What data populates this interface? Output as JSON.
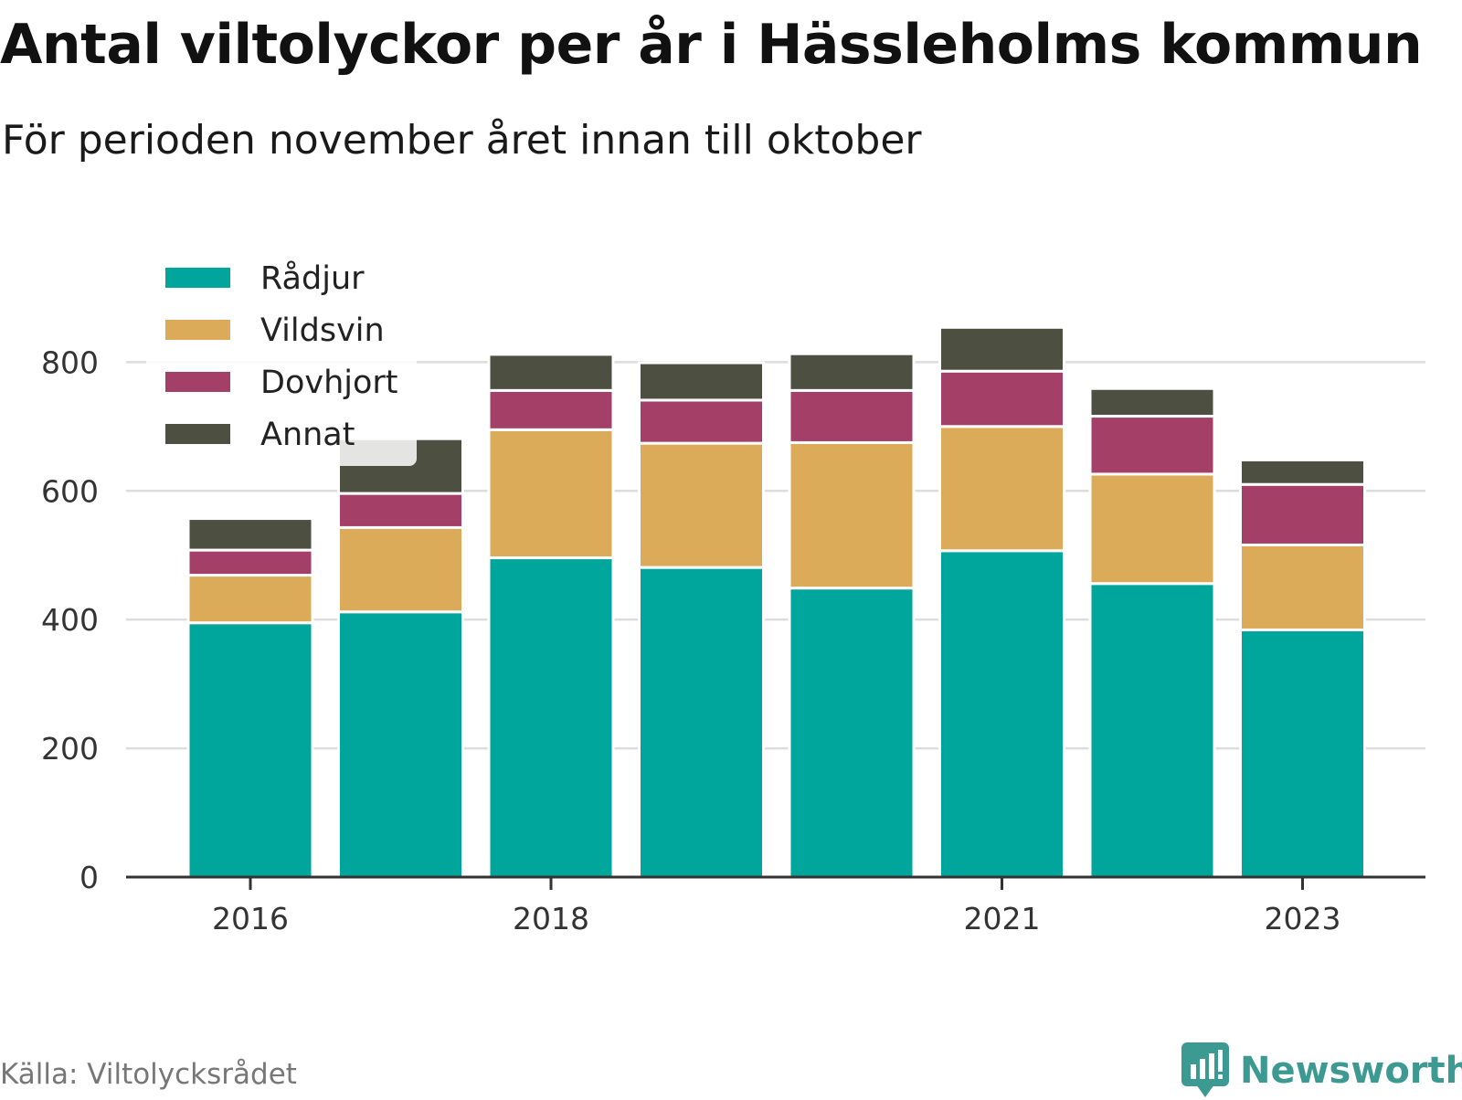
{
  "header": {
    "title": "Antal viltolyckor per år i Hässleholms kommun",
    "subtitle": "För perioden november året innan till oktober"
  },
  "footer": {
    "source": "Källa: Viltolycksrådet",
    "brand": "Newsworthy"
  },
  "chart_data": {
    "type": "bar",
    "stacked": true,
    "categories": [
      "2016",
      "2017",
      "2018",
      "2019",
      "2020",
      "2021",
      "2022",
      "2023"
    ],
    "x_tick_labels": [
      "2016",
      "",
      "2018",
      "",
      "",
      "2021",
      "",
      "2023"
    ],
    "y_ticks": [
      "0",
      "200",
      "400",
      "600",
      "800"
    ],
    "ylim": [
      0,
      880
    ],
    "grid": true,
    "legend_position": "top-left",
    "series": [
      {
        "name": "Rådjur",
        "color": "#00a59b",
        "values": [
          395,
          412,
          496,
          481,
          449,
          507,
          456,
          384
        ]
      },
      {
        "name": "Vildsvin",
        "color": "#dbab5a",
        "values": [
          74,
          131,
          199,
          193,
          226,
          193,
          170,
          132
        ]
      },
      {
        "name": "Dovhjort",
        "color": "#a44068",
        "values": [
          39,
          53,
          61,
          67,
          81,
          86,
          90,
          94
        ]
      },
      {
        "name": "Annat",
        "color": "#4d4f40",
        "values": [
          49,
          85,
          56,
          58,
          57,
          68,
          43,
          38
        ]
      }
    ]
  }
}
